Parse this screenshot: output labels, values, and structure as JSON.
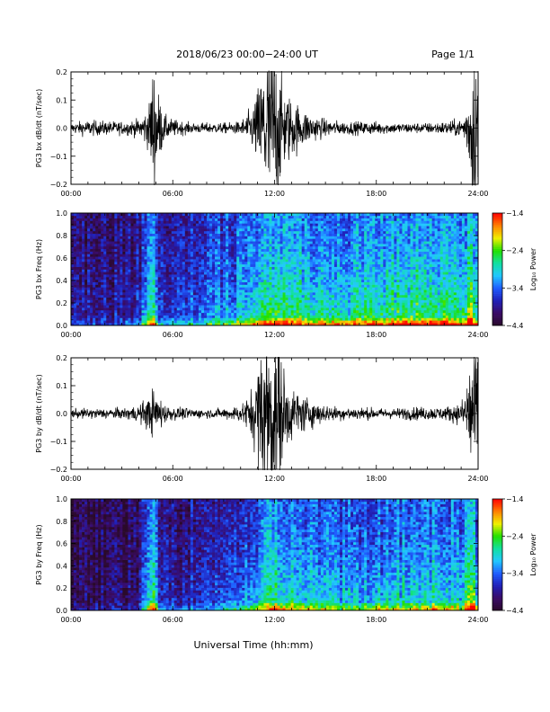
{
  "header": {
    "date_range": "2018/06/23  00:00−24:00 UT",
    "page": "Page 1/1"
  },
  "xlabel": "Universal Time (hh:mm)",
  "colors": {
    "trace": "#000000",
    "colormap": [
      "#2a0a2a",
      "#3a0b66",
      "#2020b8",
      "#1f5dff",
      "#22c8ff",
      "#12e0a0",
      "#22e000",
      "#f0f000",
      "#ff8000",
      "#ff0000"
    ]
  },
  "chart_data": [
    {
      "type": "line",
      "ylabel": "PG3 bx dB/dt (nT/sec)",
      "xlim": [
        0,
        24
      ],
      "ylim": [
        -0.2,
        0.2
      ],
      "xticks": [
        "00:00",
        "06:00",
        "12:00",
        "18:00",
        "24:00"
      ],
      "yticks": [
        "−0.2",
        "−0.1",
        "0.0",
        "0.1",
        "0.2"
      ],
      "envelope": {
        "t": [
          0,
          1,
          2,
          3,
          4,
          4.6,
          4.85,
          5.1,
          5.5,
          6,
          7,
          8,
          9,
          10,
          10.7,
          11.2,
          11.5,
          11.8,
          12.1,
          12.5,
          13,
          13.5,
          14,
          15,
          16,
          17,
          18,
          19,
          20,
          21,
          22,
          23,
          23.4,
          23.6,
          23.8,
          24
        ],
        "amplitude": [
          0.012,
          0.018,
          0.016,
          0.015,
          0.02,
          0.05,
          0.16,
          0.09,
          0.03,
          0.02,
          0.012,
          0.012,
          0.012,
          0.015,
          0.05,
          0.12,
          0.2,
          0.22,
          0.18,
          0.1,
          0.07,
          0.05,
          0.035,
          0.02,
          0.015,
          0.015,
          0.015,
          0.012,
          0.012,
          0.012,
          0.015,
          0.02,
          0.06,
          0.2,
          0.22,
          0.15
        ]
      }
    },
    {
      "type": "heatmap",
      "ylabel": "PG3 bx Freq (Hz)",
      "xlim": [
        0,
        24
      ],
      "ylim": [
        0,
        1.0
      ],
      "xticks": [
        "00:00",
        "06:00",
        "12:00",
        "18:00",
        "24:00"
      ],
      "yticks": [
        "0.0",
        "0.2",
        "0.4",
        "0.6",
        "0.8",
        "1.0"
      ],
      "colorbar": {
        "label": "Log₁₀ Power",
        "range": [
          -4.4,
          -1.4
        ],
        "ticks": [
          "−1.4",
          "−2.4",
          "−3.4",
          "−4.4"
        ]
      },
      "activity": {
        "t": [
          0,
          2,
          4,
          4.8,
          5.2,
          6,
          8,
          10,
          11,
          12,
          13,
          14,
          16,
          18,
          20,
          22,
          23,
          23.6,
          24
        ],
        "level": [
          0.18,
          0.2,
          0.25,
          0.75,
          0.35,
          0.3,
          0.38,
          0.5,
          0.62,
          0.68,
          0.66,
          0.62,
          0.6,
          0.62,
          0.68,
          0.68,
          0.6,
          0.8,
          0.55
        ]
      }
    },
    {
      "type": "line",
      "ylabel": "PG3 by dB/dt (nT/sec)",
      "xlim": [
        0,
        24
      ],
      "ylim": [
        -0.2,
        0.2
      ],
      "xticks": [
        "00:00",
        "06:00",
        "12:00",
        "18:00",
        "24:00"
      ],
      "yticks": [
        "−0.2",
        "−0.1",
        "0.0",
        "0.1",
        "0.2"
      ],
      "envelope": {
        "t": [
          0,
          1,
          2,
          3,
          4,
          4.6,
          4.9,
          5.2,
          5.6,
          6,
          7,
          8,
          9,
          10,
          10.6,
          11.1,
          11.5,
          11.9,
          12.2,
          12.6,
          13,
          13.5,
          14,
          15,
          16,
          17,
          18,
          19,
          20,
          21,
          22,
          23,
          23.3,
          23.6,
          23.8,
          24
        ],
        "amplitude": [
          0.01,
          0.012,
          0.012,
          0.012,
          0.02,
          0.04,
          0.06,
          0.04,
          0.02,
          0.015,
          0.012,
          0.01,
          0.012,
          0.02,
          0.05,
          0.14,
          0.2,
          0.22,
          0.18,
          0.1,
          0.06,
          0.05,
          0.035,
          0.02,
          0.015,
          0.015,
          0.012,
          0.012,
          0.015,
          0.015,
          0.015,
          0.025,
          0.07,
          0.18,
          0.2,
          0.12
        ]
      }
    },
    {
      "type": "heatmap",
      "ylabel": "PG3 by Freq (Hz)",
      "xlim": [
        0,
        24
      ],
      "ylim": [
        0,
        1.0
      ],
      "xticks": [
        "00:00",
        "06:00",
        "12:00",
        "18:00",
        "24:00"
      ],
      "yticks": [
        "0.0",
        "0.2",
        "0.4",
        "0.6",
        "0.8",
        "1.0"
      ],
      "colorbar": {
        "label": "Log₁₀ Power",
        "range": [
          -4.4,
          -1.4
        ],
        "ticks": [
          "−1.4",
          "−2.4",
          "−3.4",
          "−4.4"
        ]
      },
      "activity": {
        "t": [
          0,
          2,
          4,
          4.8,
          5.2,
          6,
          8,
          10,
          11,
          12,
          13,
          14,
          16,
          18,
          20,
          22,
          23,
          23.6,
          24
        ],
        "level": [
          0.1,
          0.1,
          0.15,
          0.7,
          0.25,
          0.22,
          0.28,
          0.38,
          0.52,
          0.62,
          0.6,
          0.55,
          0.48,
          0.5,
          0.55,
          0.58,
          0.52,
          0.8,
          0.5
        ]
      }
    }
  ]
}
